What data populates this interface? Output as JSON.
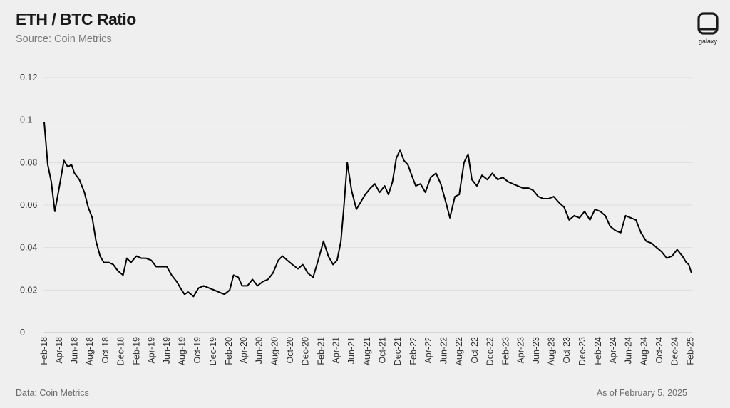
{
  "header": {
    "title": "ETH / BTC Ratio",
    "subtitle": "Source: Coin Metrics"
  },
  "brand": {
    "logo_text": "galaxy",
    "logo_icon": "galaxy-logo-icon"
  },
  "footer": {
    "data_source": "Data: Coin Metrics",
    "as_of": "As of February 5, 2025"
  },
  "colors": {
    "background": "#efefef",
    "line": "#000000",
    "grid": "#dddddd"
  },
  "chart_data": {
    "type": "line",
    "title": "ETH / BTC Ratio",
    "xlabel": "",
    "ylabel": "",
    "ylim": [
      0,
      0.12
    ],
    "xlim": [
      "2018-02-01",
      "2025-02-05"
    ],
    "grid": true,
    "y_ticks": [
      0,
      0.02,
      0.04,
      0.06,
      0.08,
      0.1,
      0.12
    ],
    "y_tick_labels": [
      "0",
      "0.02",
      "0.04",
      "0.06",
      "0.08",
      "0.1",
      "0.12"
    ],
    "x_tick_labels": [
      "Feb-18",
      "Apr-18",
      "Jun-18",
      "Aug-18",
      "Oct-18",
      "Dec-18",
      "Feb-19",
      "Apr-19",
      "Jun-19",
      "Aug-19",
      "Oct-19",
      "Dec-19",
      "Feb-20",
      "Apr-20",
      "Jun-20",
      "Aug-20",
      "Oct-20",
      "Dec-20",
      "Feb-21",
      "Apr-21",
      "Jun-21",
      "Aug-21",
      "Oct-21",
      "Dec-21",
      "Feb-22",
      "Apr-22",
      "Jun-22",
      "Aug-22",
      "Oct-22",
      "Dec-22",
      "Feb-23",
      "Apr-23",
      "Jun-23",
      "Aug-23",
      "Oct-23",
      "Dec-23",
      "Feb-24",
      "Apr-24",
      "Jun-24",
      "Aug-24",
      "Oct-24",
      "Dec-24",
      "Feb-25"
    ],
    "series": [
      {
        "x": [
          "2018-02-01",
          "2018-02-15",
          "2018-03-01",
          "2018-03-15",
          "2018-04-01",
          "2018-04-20",
          "2018-05-05",
          "2018-05-20",
          "2018-06-01",
          "2018-06-20",
          "2018-07-10",
          "2018-07-25",
          "2018-08-10",
          "2018-08-25",
          "2018-09-10",
          "2018-09-25",
          "2018-10-15",
          "2018-11-01",
          "2018-11-20",
          "2018-12-10",
          "2018-12-25",
          "2019-01-10",
          "2019-02-01",
          "2019-02-20",
          "2019-03-10",
          "2019-04-01",
          "2019-04-20",
          "2019-05-10",
          "2019-06-01",
          "2019-06-20",
          "2019-07-10",
          "2019-07-25",
          "2019-08-10",
          "2019-08-25",
          "2019-09-15",
          "2019-10-05",
          "2019-10-25",
          "2019-11-15",
          "2019-12-05",
          "2019-12-25",
          "2020-01-15",
          "2020-02-05",
          "2020-02-20",
          "2020-03-10",
          "2020-03-25",
          "2020-04-15",
          "2020-05-05",
          "2020-05-25",
          "2020-06-15",
          "2020-07-05",
          "2020-07-25",
          "2020-08-15",
          "2020-09-01",
          "2020-09-20",
          "2020-10-10",
          "2020-11-01",
          "2020-11-20",
          "2020-12-10",
          "2020-12-31",
          "2021-01-20",
          "2021-02-10",
          "2021-03-01",
          "2021-03-20",
          "2021-04-05",
          "2021-04-20",
          "2021-05-01",
          "2021-05-15",
          "2021-06-01",
          "2021-06-20",
          "2021-07-10",
          "2021-07-25",
          "2021-08-15",
          "2021-09-01",
          "2021-09-20",
          "2021-10-10",
          "2021-10-25",
          "2021-11-10",
          "2021-11-25",
          "2021-12-10",
          "2021-12-25",
          "2022-01-10",
          "2022-01-25",
          "2022-02-10",
          "2022-03-01",
          "2022-03-20",
          "2022-04-10",
          "2022-05-01",
          "2022-05-20",
          "2022-06-10",
          "2022-06-25",
          "2022-07-15",
          "2022-08-01",
          "2022-08-20",
          "2022-09-05",
          "2022-09-20",
          "2022-10-10",
          "2022-10-30",
          "2022-11-20",
          "2022-12-10",
          "2022-12-31",
          "2023-01-20",
          "2023-02-10",
          "2023-03-01",
          "2023-03-20",
          "2023-04-10",
          "2023-05-01",
          "2023-05-20",
          "2023-06-10",
          "2023-06-30",
          "2023-07-20",
          "2023-08-10",
          "2023-09-01",
          "2023-09-20",
          "2023-10-10",
          "2023-10-30",
          "2023-11-20",
          "2023-12-10",
          "2023-12-31",
          "2024-01-20",
          "2024-02-10",
          "2024-03-01",
          "2024-03-20",
          "2024-04-10",
          "2024-05-01",
          "2024-05-20",
          "2024-06-10",
          "2024-06-30",
          "2024-07-20",
          "2024-08-10",
          "2024-09-01",
          "2024-09-20",
          "2024-10-10",
          "2024-10-30",
          "2024-11-20",
          "2024-12-10",
          "2024-12-31",
          "2025-01-15",
          "2025-01-25",
          "2025-02-05"
        ],
        "values": [
          0.099,
          0.079,
          0.071,
          0.057,
          0.068,
          0.081,
          0.078,
          0.079,
          0.075,
          0.072,
          0.066,
          0.059,
          0.054,
          0.043,
          0.036,
          0.033,
          0.033,
          0.032,
          0.029,
          0.027,
          0.035,
          0.033,
          0.036,
          0.035,
          0.035,
          0.034,
          0.031,
          0.031,
          0.031,
          0.027,
          0.024,
          0.021,
          0.018,
          0.019,
          0.017,
          0.021,
          0.022,
          0.021,
          0.02,
          0.019,
          0.018,
          0.02,
          0.027,
          0.026,
          0.022,
          0.022,
          0.025,
          0.022,
          0.024,
          0.025,
          0.028,
          0.034,
          0.036,
          0.034,
          0.032,
          0.03,
          0.032,
          0.028,
          0.026,
          0.034,
          0.043,
          0.036,
          0.032,
          0.034,
          0.043,
          0.058,
          0.08,
          0.067,
          0.058,
          0.062,
          0.065,
          0.068,
          0.07,
          0.066,
          0.069,
          0.065,
          0.071,
          0.082,
          0.086,
          0.081,
          0.079,
          0.074,
          0.069,
          0.07,
          0.066,
          0.073,
          0.075,
          0.07,
          0.061,
          0.054,
          0.064,
          0.065,
          0.08,
          0.084,
          0.072,
          0.069,
          0.074,
          0.072,
          0.075,
          0.072,
          0.073,
          0.071,
          0.07,
          0.069,
          0.068,
          0.068,
          0.067,
          0.064,
          0.063,
          0.063,
          0.064,
          0.061,
          0.059,
          0.053,
          0.055,
          0.054,
          0.057,
          0.053,
          0.058,
          0.057,
          0.055,
          0.05,
          0.048,
          0.047,
          0.055,
          0.054,
          0.053,
          0.047,
          0.043,
          0.042,
          0.04,
          0.038,
          0.035,
          0.036,
          0.039,
          0.036,
          0.033,
          0.032,
          0.028
        ]
      }
    ]
  }
}
